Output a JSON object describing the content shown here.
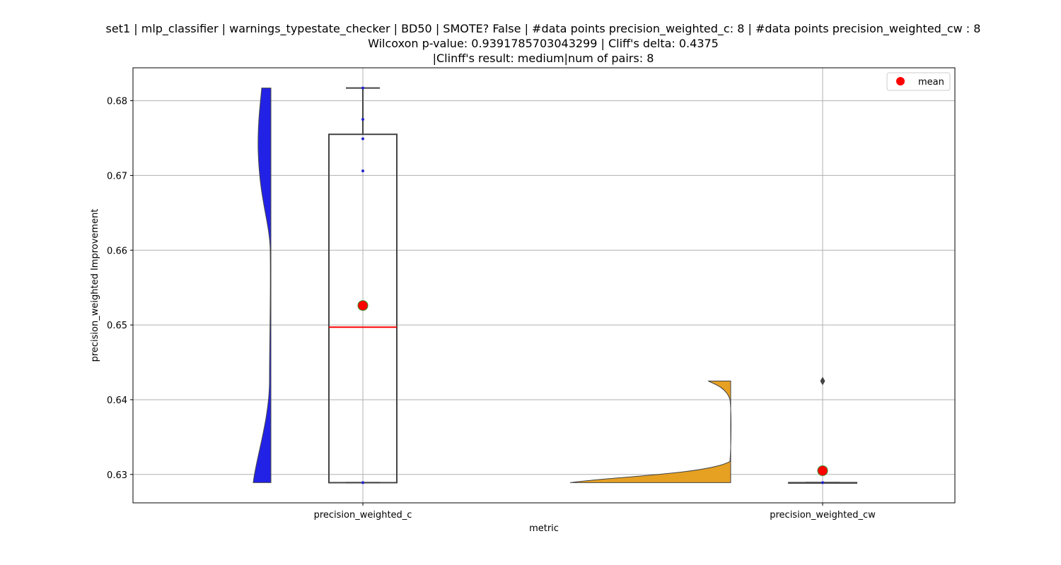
{
  "title": {
    "line1": "set1 | mlp_classifier | warnings_typestate_checker | BD50 | SMOTE? False | #data points precision_weighted_c: 8 | #data points precision_weighted_cw : 8",
    "line2": "Wilcoxon p-value: 0.9391785703043299 | Cliff's delta: 0.4375",
    "line3": "|Clinff's result: medium|num of pairs: 8"
  },
  "chart_data": {
    "type": "box",
    "overlay": [
      "half-violin",
      "strip",
      "mean-marker"
    ],
    "xlabel": "metric",
    "ylabel": "precision_weighted Improvement",
    "ylim": [
      0.6262,
      0.6844
    ],
    "yticks": [
      0.63,
      0.64,
      0.65,
      0.66,
      0.67,
      0.68
    ],
    "ytick_labels": [
      "0.63",
      "0.64",
      "0.65",
      "0.66",
      "0.67",
      "0.68"
    ],
    "grid": true,
    "legend": {
      "position": "top-right",
      "entries": [
        {
          "label": "mean",
          "color": "#ff0000"
        }
      ]
    },
    "categories": [
      "precision_weighted_c",
      "precision_weighted_cw"
    ],
    "groups": [
      {
        "name": "precision_weighted_c",
        "violin_color": "#2222e6",
        "box": {
          "min": 0.6289,
          "q1": 0.6289,
          "median": 0.6497,
          "q3": 0.6755,
          "max": 0.6817
        },
        "mean": 0.6526,
        "points": [
          0.6289,
          0.6706,
          0.6749,
          0.6775,
          0.6817
        ],
        "outliers": []
      },
      {
        "name": "precision_weighted_cw",
        "violin_color": "#e6a022",
        "box": {
          "min": 0.6289,
          "q1": 0.6289,
          "median": 0.6289,
          "q3": 0.6289,
          "max": 0.6289
        },
        "mean": 0.6305,
        "points": [
          0.6289
        ],
        "outliers": [
          0.6425
        ]
      }
    ]
  }
}
